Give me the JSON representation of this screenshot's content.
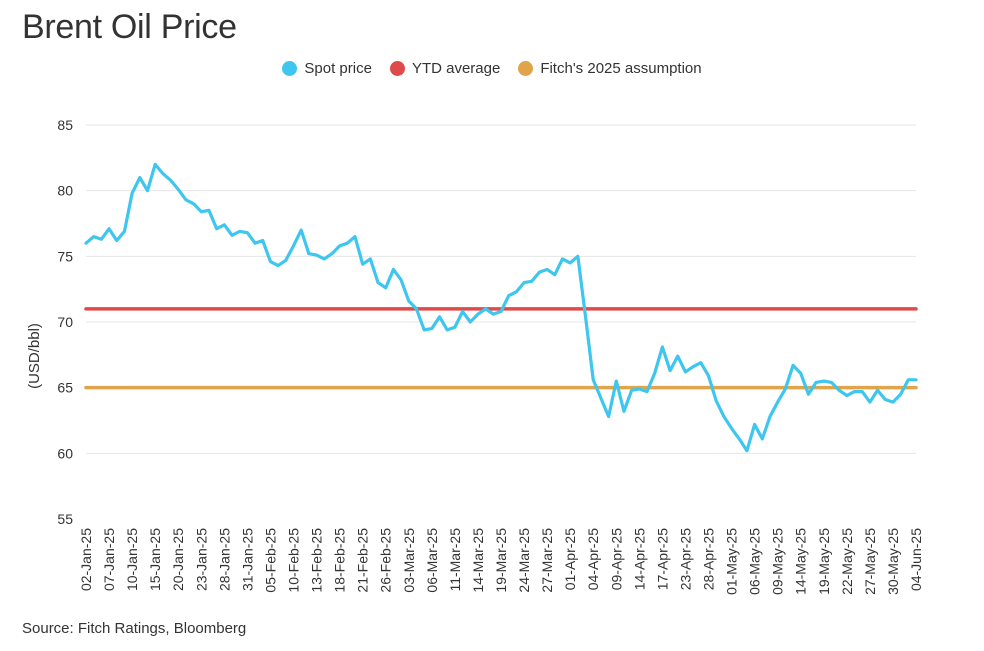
{
  "title": "Brent Oil Price",
  "source": "Source: Fitch Ratings, Bloomberg",
  "chart_data": {
    "type": "line",
    "title": "Brent Oil Price",
    "ylabel": "(USD/bbl)",
    "xlabel": "",
    "ylim": [
      55,
      85
    ],
    "yticks": [
      55,
      60,
      65,
      70,
      75,
      80,
      85
    ],
    "grid": true,
    "legend_position": "top-center",
    "x_tick_labels": [
      "02-Jan-25",
      "07-Jan-25",
      "10-Jan-25",
      "15-Jan-25",
      "20-Jan-25",
      "23-Jan-25",
      "28-Jan-25",
      "31-Jan-25",
      "05-Feb-25",
      "10-Feb-25",
      "13-Feb-25",
      "18-Feb-25",
      "21-Feb-25",
      "26-Feb-25",
      "03-Mar-25",
      "06-Mar-25",
      "11-Mar-25",
      "14-Mar-25",
      "19-Mar-25",
      "24-Mar-25",
      "27-Mar-25",
      "01-Apr-25",
      "04-Apr-25",
      "09-Apr-25",
      "14-Apr-25",
      "17-Apr-25",
      "23-Apr-25",
      "28-Apr-25",
      "01-May-25",
      "06-May-25",
      "09-May-25",
      "14-May-25",
      "19-May-25",
      "22-May-25",
      "27-May-25",
      "30-May-25",
      "04-Jun-25"
    ],
    "series": [
      {
        "name": "Spot price",
        "color": "#3ec6ef",
        "values": [
          76.0,
          76.5,
          76.3,
          77.1,
          76.2,
          76.9,
          79.8,
          81.0,
          80.0,
          82.0,
          81.3,
          80.8,
          80.1,
          79.3,
          79.0,
          78.4,
          78.5,
          77.1,
          77.4,
          76.6,
          76.9,
          76.8,
          76.0,
          76.2,
          74.6,
          74.3,
          74.7,
          75.8,
          77.0,
          75.2,
          75.1,
          74.8,
          75.2,
          75.8,
          76.0,
          76.5,
          74.4,
          74.8,
          73.0,
          72.6,
          74.0,
          73.2,
          71.6,
          71.0,
          69.4,
          69.5,
          70.4,
          69.4,
          69.6,
          70.8,
          70.0,
          70.6,
          71.0,
          70.6,
          70.8,
          72.0,
          72.3,
          73.0,
          73.1,
          73.8,
          74.0,
          73.6,
          74.8,
          74.5,
          75.0,
          70.4,
          65.6,
          64.2,
          62.8,
          65.5,
          63.2,
          64.8,
          64.9,
          64.7,
          66.1,
          68.1,
          66.3,
          67.4,
          66.2,
          66.6,
          66.9,
          65.9,
          64.0,
          62.8,
          61.9,
          61.1,
          60.2,
          62.2,
          61.1,
          62.8,
          63.9,
          64.9,
          66.7,
          66.1,
          64.5,
          65.4,
          65.5,
          65.4,
          64.8,
          64.4,
          64.7,
          64.7,
          63.9,
          64.8,
          64.1,
          63.9,
          64.5,
          65.6,
          65.6
        ]
      },
      {
        "name": "YTD average",
        "color": "#e04a4a",
        "values": [
          71.0,
          71.0
        ]
      },
      {
        "name": "Fitch's 2025 assumption",
        "color": "#e0a44a",
        "values": [
          65.0,
          65.0
        ]
      }
    ]
  }
}
